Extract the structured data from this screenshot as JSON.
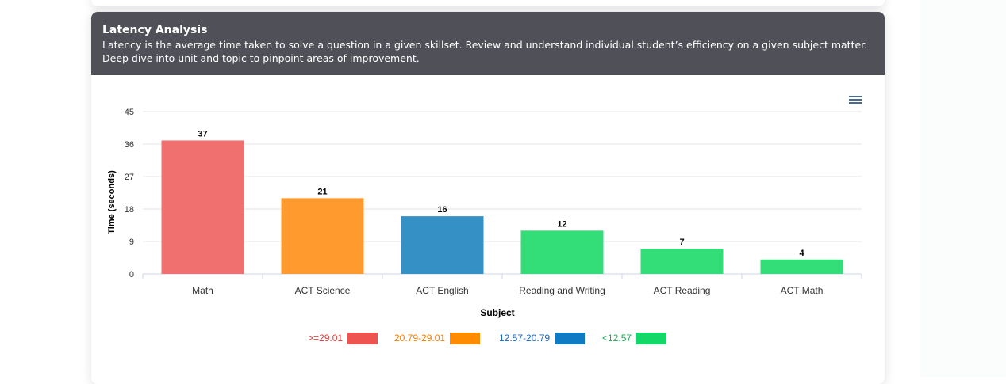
{
  "header": {
    "title": "Latency Analysis",
    "description_line1": "Latency is the average time taken to solve a question in a given skillset. Review and understand individual student’s efficiency on a given subject matter.",
    "description_line2": "Deep dive into unit and topic to pinpoint areas of improvement."
  },
  "menu_icon": "hamburger-menu-icon",
  "chart_data": {
    "type": "bar",
    "categories": [
      "Math",
      "ACT Science",
      "ACT English",
      "Reading and Writing",
      "ACT Reading",
      "ACT Math"
    ],
    "values": [
      37,
      21,
      16,
      12,
      7,
      4
    ],
    "bar_colors": [
      "#f07070",
      "#ff9a2e",
      "#3590c6",
      "#33de78",
      "#33de78",
      "#33de78"
    ],
    "xlabel": "Subject",
    "ylabel": "Time (seconds)",
    "ylim": [
      0,
      45
    ],
    "yticks": [
      0,
      9,
      18,
      27,
      36,
      45
    ],
    "grid": true,
    "data_labels": true,
    "legend_position": "bottom-center"
  },
  "legend": [
    {
      "label": ">=29.01",
      "color": "#ef5350",
      "text_color": "#e53935"
    },
    {
      "label": "20.79-29.01",
      "color": "#ff8c00",
      "text_color": "#f57c00"
    },
    {
      "label": "12.57-20.79",
      "color": "#0e7bc4",
      "text_color": "#1565c0"
    },
    {
      "label": "<12.57",
      "color": "#12d868",
      "text_color": "#26a65b"
    }
  ]
}
